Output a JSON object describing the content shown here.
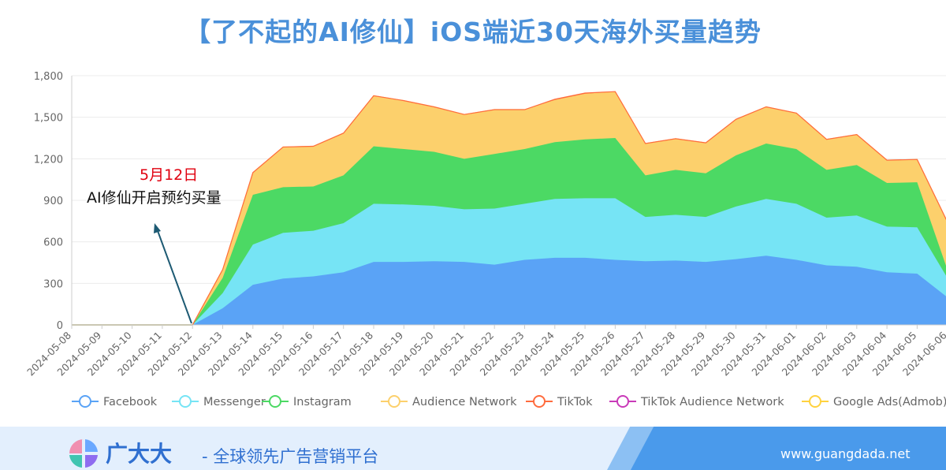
{
  "title": "【了不起的AI修仙】iOS端近30天海外买量趋势",
  "annotation": {
    "date": "5月12日",
    "text": "AI修仙开启预约买量"
  },
  "footer": {
    "brand": "广大大",
    "slogan": "- 全球领先广告营销平台",
    "website": "www.guangdada.net"
  },
  "chart_data": {
    "type": "area",
    "stacked": true,
    "title": "【了不起的AI修仙】iOS端近30天海外买量趋势",
    "xlabel": "",
    "ylabel": "",
    "ylim": [
      0,
      1800
    ],
    "yticks": [
      0,
      300,
      600,
      900,
      1200,
      1500,
      1800
    ],
    "ytick_labels": [
      "0",
      "300",
      "600",
      "900",
      "1,200",
      "1,500",
      "1,800"
    ],
    "grid": true,
    "legend_position": "bottom",
    "categories": [
      "2024-05-08",
      "2024-05-09",
      "2024-05-10",
      "2024-05-11",
      "2024-05-12",
      "2024-05-13",
      "2024-05-14",
      "2024-05-15",
      "2024-05-16",
      "2024-05-17",
      "2024-05-18",
      "2024-05-19",
      "2024-05-20",
      "2024-05-21",
      "2024-05-22",
      "2024-05-23",
      "2024-05-24",
      "2024-05-25",
      "2024-05-26",
      "2024-05-27",
      "2024-05-28",
      "2024-05-29",
      "2024-05-30",
      "2024-05-31",
      "2024-06-01",
      "2024-06-02",
      "2024-06-03",
      "2024-06-04",
      "2024-06-05",
      "2024-06-06"
    ],
    "series": [
      {
        "name": "Facebook",
        "color": "#5aa3f6",
        "values": [
          0,
          0,
          0,
          0,
          0,
          120,
          290,
          335,
          350,
          380,
          455,
          455,
          460,
          455,
          435,
          470,
          485,
          485,
          470,
          460,
          465,
          455,
          475,
          500,
          470,
          430,
          420,
          380,
          370,
          200
        ]
      },
      {
        "name": "Messenger",
        "color": "#76e4f5",
        "values": [
          0,
          0,
          0,
          0,
          0,
          110,
          290,
          330,
          330,
          355,
          420,
          415,
          400,
          380,
          405,
          405,
          425,
          430,
          445,
          320,
          330,
          325,
          380,
          410,
          405,
          345,
          370,
          330,
          335,
          140
        ]
      },
      {
        "name": "Instagram",
        "color": "#4cd964",
        "values": [
          0,
          0,
          0,
          0,
          0,
          110,
          360,
          330,
          320,
          345,
          415,
          400,
          390,
          365,
          395,
          395,
          410,
          425,
          435,
          300,
          325,
          315,
          370,
          400,
          395,
          345,
          365,
          315,
          325,
          60
        ]
      },
      {
        "name": "Audience Network",
        "color": "#fcd06c",
        "values": [
          0,
          0,
          0,
          0,
          0,
          60,
          160,
          290,
          290,
          305,
          365,
          350,
          325,
          320,
          320,
          285,
          305,
          330,
          335,
          230,
          225,
          220,
          260,
          265,
          260,
          220,
          220,
          165,
          165,
          345
        ]
      },
      {
        "name": "TikTok",
        "color": "#ff6b3d",
        "values": [
          0,
          0,
          0,
          0,
          0,
          0,
          0,
          0,
          0,
          0,
          0,
          0,
          0,
          0,
          0,
          0,
          5,
          5,
          0,
          0,
          0,
          0,
          0,
          0,
          0,
          0,
          0,
          0,
          0,
          0
        ]
      },
      {
        "name": "TikTok Audience Network",
        "color": "#c93ab8",
        "values": [
          0,
          0,
          0,
          0,
          0,
          0,
          0,
          0,
          0,
          0,
          0,
          0,
          0,
          0,
          0,
          0,
          0,
          0,
          0,
          0,
          0,
          0,
          0,
          0,
          0,
          0,
          0,
          0,
          0,
          0
        ]
      },
      {
        "name": "Google Ads(Admob)",
        "color": "#ffd23f",
        "values": [
          0,
          0,
          0,
          0,
          0,
          0,
          0,
          0,
          0,
          0,
          0,
          0,
          0,
          0,
          0,
          0,
          0,
          0,
          0,
          0,
          0,
          0,
          0,
          0,
          0,
          0,
          0,
          0,
          0,
          0
        ]
      }
    ]
  }
}
